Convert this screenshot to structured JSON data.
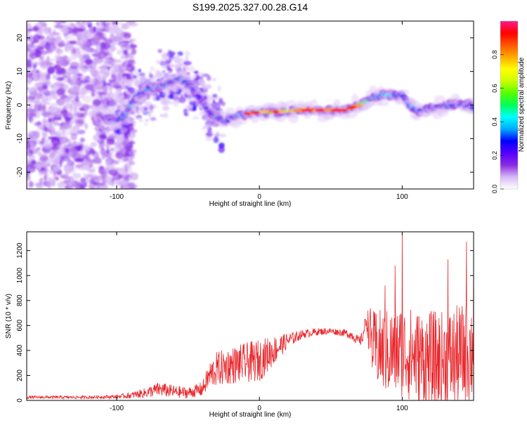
{
  "page": {
    "title": "S199.2025.327.00.28.G14"
  },
  "chart_data": [
    {
      "type": "heatmap",
      "title": "S199.2025.327.00.28.G14",
      "xlabel": "Height of straight line (km)",
      "ylabel": "Frequency (Hz)",
      "xlim": [
        -163,
        150
      ],
      "ylim": [
        -25,
        25
      ],
      "xticks": [
        -100,
        0,
        100
      ],
      "yticks": [
        -20,
        -10,
        0,
        10,
        20
      ],
      "colorbar": {
        "label": "Normalized spectral amplitude",
        "range": [
          0,
          1
        ],
        "ticks": [
          "0.0",
          "0.2",
          "0.4",
          "0.6",
          "0.8"
        ],
        "tick_values": [
          0,
          0.2,
          0.4,
          0.6,
          0.8
        ],
        "colors": [
          "#ffffff",
          "#d6b8f5",
          "#8a2be2",
          "#5500ff",
          "#0000ff",
          "#00aaff",
          "#00ffff",
          "#00ff55",
          "#55ff00",
          "#ccff00",
          "#ffff00",
          "#ffaa00",
          "#ff5500",
          "#ff0000",
          "#ff1a8c"
        ]
      },
      "ridge": {
        "x": [
          -160,
          -140,
          -120,
          -110,
          -100,
          -95,
          -85,
          -75,
          -65,
          -55,
          -45,
          -35,
          -25,
          -15,
          0,
          15,
          30,
          45,
          60,
          70,
          80,
          90,
          100,
          105,
          110,
          120,
          130,
          140,
          150
        ],
        "y": [
          0,
          -1,
          -3,
          -3.5,
          -5,
          -3,
          3,
          5,
          6,
          8,
          4,
          -2,
          -5,
          -3,
          -2,
          -2,
          -1.5,
          -1.5,
          -1.5,
          0,
          2.5,
          3,
          3,
          0,
          -1.5,
          -1,
          0,
          0,
          -0.5
        ],
        "amplitude": [
          0.1,
          0.1,
          0.12,
          0.15,
          0.3,
          0.35,
          0.3,
          0.35,
          0.3,
          0.4,
          0.2,
          0.3,
          0.3,
          0.35,
          0.45,
          0.6,
          0.9,
          0.85,
          0.65,
          0.55,
          0.4,
          0.4,
          0.3,
          0.3,
          0.35,
          0.3,
          0.35,
          0.3,
          0.3
        ]
      }
    },
    {
      "type": "line",
      "xlabel": "Height of straight line (km)",
      "ylabel": "SNR (10 * v/v)",
      "xlim": [
        -163,
        150
      ],
      "ylim": [
        0,
        1350
      ],
      "xticks": [
        -100,
        0,
        100
      ],
      "yticks": [
        0,
        200,
        400,
        600,
        800,
        1000,
        1200
      ],
      "color": "#e8262b",
      "series": [
        {
          "name": "SNR",
          "x": [
            -163,
            -140,
            -120,
            -100,
            -90,
            -80,
            -70,
            -60,
            -50,
            -40,
            -35,
            -30,
            -20,
            -10,
            0,
            10,
            20,
            30,
            40,
            50,
            60,
            65,
            70,
            72,
            75,
            78,
            80,
            85,
            90,
            100,
            110,
            120,
            130,
            140,
            150
          ],
          "base": [
            25,
            25,
            25,
            30,
            40,
            60,
            90,
            70,
            60,
            90,
            200,
            250,
            280,
            300,
            320,
            400,
            480,
            530,
            550,
            555,
            540,
            520,
            470,
            500,
            650,
            500,
            420,
            400,
            380,
            400,
            350,
            300,
            320,
            350,
            400
          ],
          "noise": [
            12,
            12,
            12,
            15,
            25,
            40,
            60,
            50,
            45,
            60,
            110,
            140,
            150,
            160,
            170,
            120,
            60,
            35,
            30,
            25,
            30,
            40,
            40,
            50,
            80,
            250,
            300,
            330,
            350,
            380,
            380,
            420,
            400,
            420,
            420
          ],
          "peaks": [
            [
              100,
              1350
            ],
            [
              145,
              1270
            ],
            [
              95,
              1080
            ],
            [
              150,
              1230
            ],
            [
              132,
              1130
            ],
            [
              88,
              920
            ]
          ]
        }
      ]
    }
  ]
}
